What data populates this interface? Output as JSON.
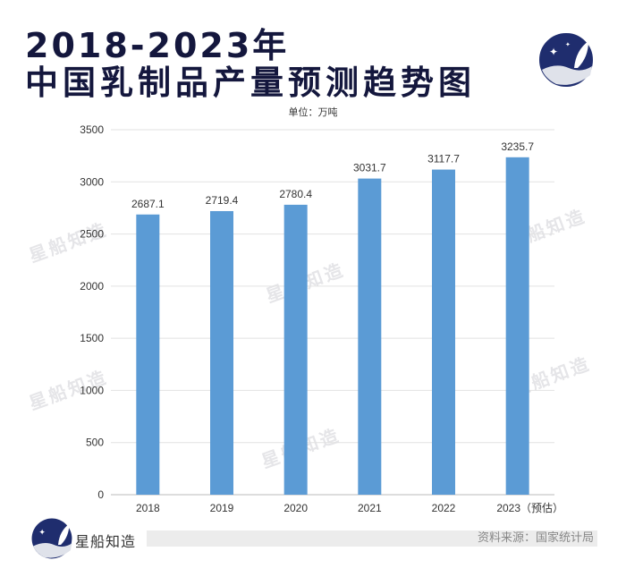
{
  "title_line1": "2018-2023年",
  "title_line2": "中国乳制品产量预测趋势图",
  "unit_label": "单位：万吨",
  "brand_name": "星船知造",
  "source": "资料来源：国家统计局",
  "watermark": "星船知造",
  "colors": {
    "bar": "#5b9bd5",
    "title": "#14173d",
    "logo": "#1f2d6e"
  },
  "chart_data": {
    "type": "bar",
    "title": "2018-2023年中国乳制品产量预测趋势图",
    "ylabel": "单位：万吨",
    "xlabel": "",
    "categories": [
      "2018",
      "2019",
      "2020",
      "2021",
      "2022",
      "2023（预估）"
    ],
    "values": [
      2687.1,
      2719.4,
      2780.4,
      3031.7,
      3117.7,
      3235.7
    ],
    "value_labels": [
      "2687.1",
      "2719.4",
      "2780.4",
      "3031.7",
      "3117.7",
      "3235.7"
    ],
    "yticks": [
      "0",
      "500",
      "1000",
      "1500",
      "2000",
      "2500",
      "3000",
      "3500"
    ],
    "ylim": [
      0,
      3500
    ],
    "grid": true,
    "legend": "none"
  }
}
